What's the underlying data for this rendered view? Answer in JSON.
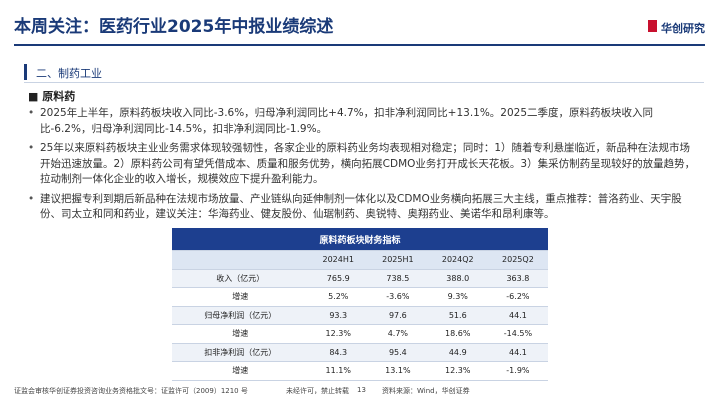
{
  "header": {
    "title": "本周关注：医药行业2025年中报业绩综述",
    "logo": "华创研究"
  },
  "section": {
    "title": "二、制药工业",
    "subtitle": "原料药"
  },
  "bullets": [
    "2025年上半年，原料药板块收入同比-3.6%，归母净利润同比+4.7%，扣非净利润同比+13.1%。2025二季度，原料药板块收入同比-6.2%，归母净利润同比-14.5%，扣非净利润同比-1.9%。",
    "25年以来原料药板块主业业务需求体现较强韧性，各家企业的原料药业务均表现相对稳定；同时：1）随着专利悬崖临近，新品种在法规市场开始迅速放量。2）原料药公司有望凭借成本、质量和服务优势，横向拓展CDMO业务打开成长天花板。3）集采仿制药呈现较好的放量趋势，拉动制剂一体化企业的收入增长，规模效应下提升盈利能力。",
    "建议把握专利到期后新品种在法规市场放量、产业链纵向延伸制剂一体化以及CDMO业务横向拓展三大主线，重点推荐：普洛药业、天宇股份、司太立和同和药业，建议关注：华海药业、健友股份、仙琚制药、奥锐特、奥翔药业、美诺华和昂利康等。"
  ],
  "table": {
    "title": "原料药板块财务指标",
    "columns": [
      "2024H1",
      "2025H1",
      "2024Q2",
      "2025Q2"
    ],
    "rows": [
      [
        "收入（亿元）",
        "765.9",
        "738.5",
        "388.0",
        "363.8"
      ],
      [
        "增速",
        "5.2%",
        "-3.6%",
        "9.3%",
        "-6.2%"
      ],
      [
        "归母净利润（亿元）",
        "93.3",
        "97.6",
        "51.6",
        "44.1"
      ],
      [
        "增速",
        "12.3%",
        "4.7%",
        "18.6%",
        "-14.5%"
      ],
      [
        "扣非净利润（亿元）",
        "84.3",
        "95.4",
        "44.9",
        "44.1"
      ],
      [
        "增速",
        "11.1%",
        "13.1%",
        "12.3%",
        "-1.9%"
      ]
    ]
  },
  "footer": {
    "license": "证监会审核华创证券投资咨询业务资格批文号：证监许可（2009）1210 号",
    "notice": "未经许可，禁止转载",
    "page": "13",
    "source": "资料来源：Wind，华创证券"
  }
}
